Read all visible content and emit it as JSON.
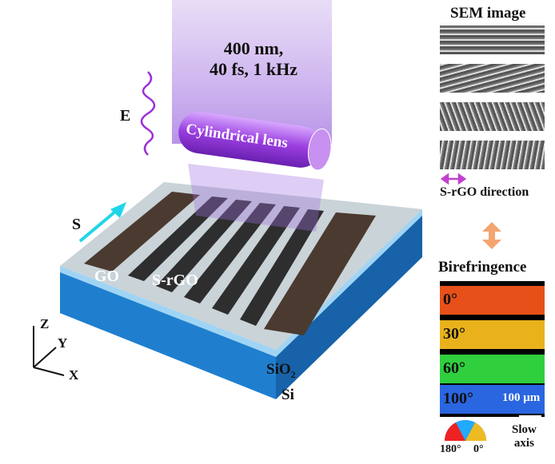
{
  "laser": {
    "line1": "400 nm,",
    "line2": "40 fs, 1 kHz"
  },
  "lens_label": "Cylindrical lens",
  "field_label": "E",
  "scan_label": "S",
  "region_labels": {
    "go": "GO",
    "srgo": "S-rGO"
  },
  "layers": {
    "sio2": "SiO",
    "sio2_sub": "2",
    "si": "Si"
  },
  "axes": {
    "z": "Z",
    "y": "Y",
    "x": "X"
  },
  "sem": {
    "title": "SEM image",
    "legend": "S-rGO direction",
    "angles": [
      0,
      15,
      70,
      100
    ]
  },
  "birefringence": {
    "title": "Birefringence",
    "panels": [
      "0°",
      "30°",
      "60°",
      "100°"
    ],
    "colors": [
      "#e8501a",
      "#e9b21c",
      "#2fcf3d",
      "#2a66e0"
    ],
    "scale": "100 μm",
    "wheel_left": "180°",
    "wheel_right": "0°",
    "slow_axis_1": "Slow",
    "slow_axis_2": "axis"
  },
  "colors": {
    "beam": "#b080e8",
    "slab": "#2a8fd8",
    "arrow": "#1fd6e8",
    "magenta": "#c040d0"
  }
}
